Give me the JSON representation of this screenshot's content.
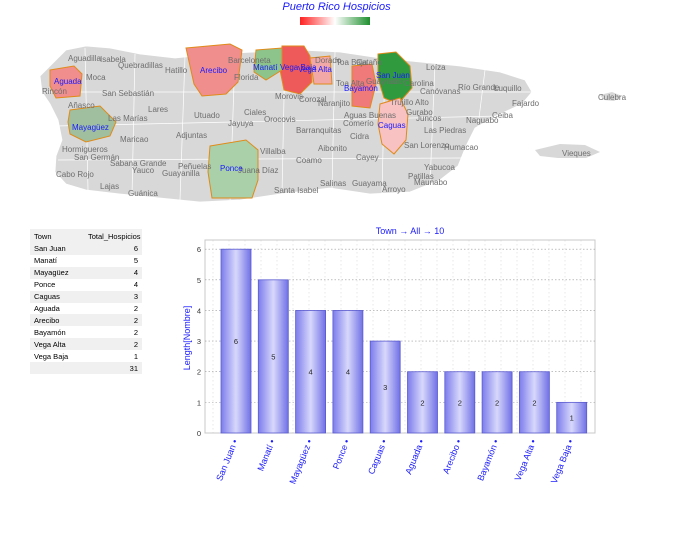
{
  "map": {
    "title": "Puerto Rico Hospicios",
    "legend_colors": [
      "#ff2020",
      "#ffffff",
      "#1e8f2e"
    ],
    "label_color": "#1a1aff",
    "town_labels": [
      "Aguadilla",
      "Isabela",
      "Quebradillas",
      "Hatillo",
      "Barceloneta",
      "Florida",
      "Dorado",
      "Toa Baja",
      "Cataño",
      "Guaynabo",
      "Loíza",
      "Carolina",
      "Canóvanas",
      "Río Grande",
      "Luquillo",
      "Fajardo",
      "Culebra",
      "Moca",
      "Rincón",
      "San Sebastián",
      "Añasco",
      "Lares",
      "Las Marías",
      "Utuado",
      "Ciales",
      "Morovis",
      "Corozal",
      "Naranjito",
      "Toa Alta",
      "Bayamón",
      "Trujillo Alto",
      "Gurabo",
      "Juncos",
      "Naguabo",
      "Ceiba",
      "Maricao",
      "Adjuntas",
      "Jayuya",
      "Orocovis",
      "Barranquitas",
      "Comerío",
      "Aguas Buenas",
      "Cidra",
      "Las Piedras",
      "Humacao",
      "Hormigueros",
      "San Germán",
      "Sabana Grande",
      "Yauco",
      "Guayanilla",
      "Peñuelas",
      "Villalba",
      "Coamo",
      "Aibonito",
      "Cayey",
      "San Lorenzo",
      "Yabucoa",
      "Cabo Rojo",
      "Lajas",
      "Guánica",
      "Juana Díaz",
      "Santa Isabel",
      "Salinas",
      "Guayama",
      "Arroyo",
      "Patillas",
      "Maunabo",
      "Vieques",
      "Manatí",
      "Vega Baja",
      "Vega Alta",
      "San Juan",
      "Aguada",
      "Arecibo",
      "Mayagüez",
      "Caguas",
      "Ponce"
    ]
  },
  "table": {
    "headers": [
      "Town",
      "Total_Hospicios"
    ],
    "rows": [
      {
        "town": "San Juan",
        "total": "6"
      },
      {
        "town": "Manatí",
        "total": "5"
      },
      {
        "town": "Mayagüez",
        "total": "4"
      },
      {
        "town": "Ponce",
        "total": "4"
      },
      {
        "town": "Caguas",
        "total": "3"
      },
      {
        "town": "Aguada",
        "total": "2"
      },
      {
        "town": "Arecibo",
        "total": "2"
      },
      {
        "town": "Bayamón",
        "total": "2"
      },
      {
        "town": "Vega Alta",
        "total": "2"
      },
      {
        "town": "Vega Baja",
        "total": "1"
      }
    ],
    "total": "31"
  },
  "chart_data": {
    "type": "bar",
    "title": "Town → All → 10",
    "ylabel": "Length[Nombre]",
    "xlabel": "",
    "categories": [
      "San Juan",
      "Manatí",
      "Mayagüez",
      "Ponce",
      "Caguas",
      "Aguada",
      "Arecibo",
      "Bayamón",
      "Vega Alta",
      "Vega Baja"
    ],
    "tick_suffix": " •",
    "values": [
      6,
      5,
      4,
      4,
      3,
      2,
      2,
      2,
      2,
      1
    ],
    "ylim": [
      0,
      6.3
    ],
    "yticks": [
      0,
      1,
      2,
      3,
      4,
      5,
      6
    ],
    "grid": true,
    "bar_color": "#8f8ff2",
    "label_color": "#1a1aff"
  }
}
